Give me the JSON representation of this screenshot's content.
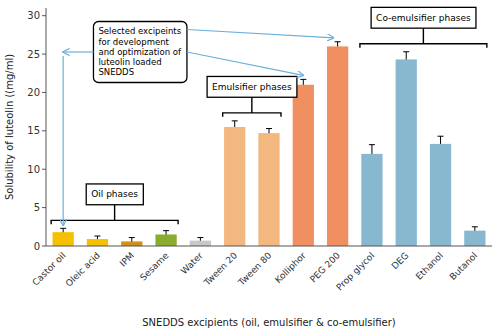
{
  "chart_data": {
    "type": "bar",
    "categories": [
      "Castor oil",
      "Oleic acid",
      "IPM",
      "Sesame",
      "Water",
      "Tween 20",
      "Tween 80",
      "Kolliphor",
      "PEG 200",
      "Prop glycol",
      "DEG",
      "Ethanol",
      "Butanol"
    ],
    "values": [
      1.8,
      0.9,
      0.6,
      1.5,
      0.7,
      15.5,
      14.7,
      21.0,
      26.0,
      12.0,
      24.3,
      13.3,
      2.0
    ],
    "errors": [
      0.5,
      0.4,
      0.5,
      0.5,
      0.4,
      0.8,
      0.6,
      0.7,
      0.6,
      1.2,
      1.0,
      1.0,
      0.5
    ],
    "colors": [
      "#f5c000",
      "#f5c000",
      "#d49010",
      "#8aad2f",
      "#c8c8c8",
      "#f2b880",
      "#f2b880",
      "#f09060",
      "#f09060",
      "#88b8d0",
      "#88b8d0",
      "#88b8d0",
      "#88b8d0"
    ],
    "ylabel": "Solubility of luteolin ((mg/ml)",
    "xlabel": "SNEDDS excipients (oil, emulsifier & co-emulsifier)",
    "ylim": [
      0,
      31
    ],
    "yticks": [
      0,
      5,
      10,
      15,
      20,
      25,
      30
    ],
    "grid": false,
    "annotations": [
      {
        "text": "Selected excipeints\nfor development\nand optimization of\nluteolin loaded\nSNEDDS",
        "color": "#6ab0d8"
      },
      {
        "text": "Oil phases"
      },
      {
        "text": "Emulsifier phases"
      },
      {
        "text": "Co-emulsifier phases"
      }
    ]
  }
}
